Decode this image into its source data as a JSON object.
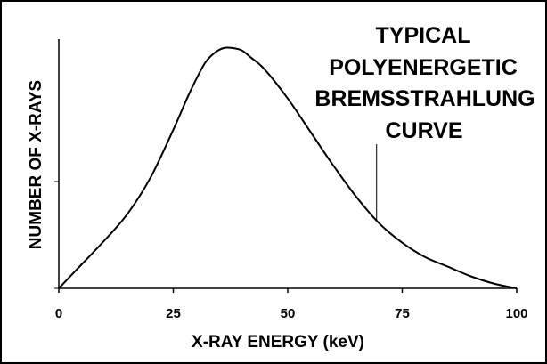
{
  "chart_data": {
    "type": "line",
    "title": "TYPICAL POLYENERGETIC BREMSSTRAHLUNG CURVE",
    "title_lines": [
      "TYPICAL",
      "POLYENERGETIC",
      "BREMSSTRAHLUNG",
      "CURVE"
    ],
    "xlabel": "X-RAY ENERGY (keV)",
    "ylabel": "NUMBER OF X-RAYS",
    "xlim": [
      0,
      100
    ],
    "x_ticks": [
      0,
      25,
      50,
      75,
      100
    ],
    "x_tick_labels": [
      "0",
      "25",
      "50",
      "75",
      "100"
    ],
    "y_tick_count": 2,
    "grid": false,
    "legend": "none",
    "series": [
      {
        "x": [
          0,
          5,
          10,
          15,
          20,
          25,
          28,
          30,
          32,
          34,
          36,
          38,
          40,
          42,
          45,
          50,
          55,
          60,
          65,
          70,
          75,
          80,
          85,
          90,
          95,
          100
        ],
        "y": [
          0.0,
          0.1,
          0.2,
          0.31,
          0.46,
          0.66,
          0.79,
          0.87,
          0.94,
          0.98,
          1.0,
          1.0,
          0.99,
          0.96,
          0.91,
          0.79,
          0.65,
          0.51,
          0.38,
          0.27,
          0.19,
          0.13,
          0.09,
          0.05,
          0.02,
          0.0
        ]
      }
    ],
    "annotation": {
      "text": "TYPICAL POLYENERGETIC BREMSSTRAHLUNG CURVE",
      "pointer_x": 69.4,
      "pointer_y": 0.28
    },
    "colors": {
      "line": "#000000",
      "background": "#ffffff",
      "frame": "#000000"
    }
  }
}
